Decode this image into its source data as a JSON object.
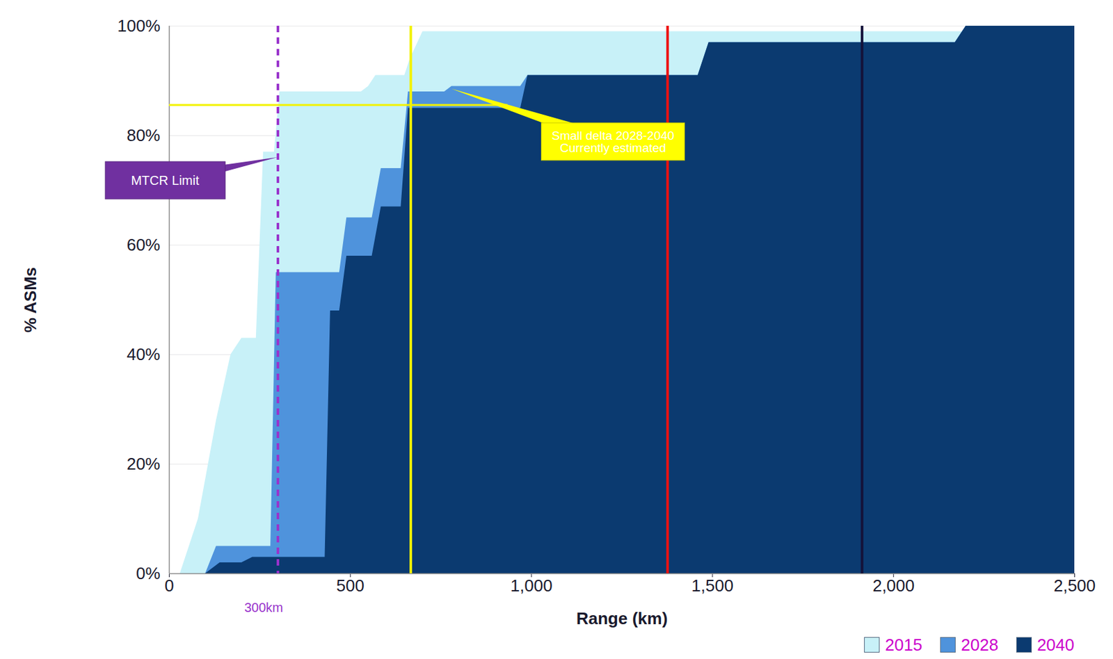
{
  "chart_data": {
    "type": "area",
    "x_label": "Range (km)",
    "y_label": "% ASMs",
    "xlim": [
      0,
      2500
    ],
    "xticks": [
      0,
      500,
      {
        "value": 1000,
        "label": "1,000"
      },
      {
        "value": 1500,
        "label": "1,500"
      },
      {
        "value": 2000,
        "label": "2,000"
      },
      {
        "value": 2500,
        "label": "2,500"
      }
    ],
    "ylim": [
      0,
      100
    ],
    "yticks": [
      {
        "value": 0,
        "label": "0%"
      },
      {
        "value": 20,
        "label": "20%"
      },
      {
        "value": 40,
        "label": "40%"
      },
      {
        "value": 60,
        "label": "60%"
      },
      {
        "value": 80,
        "label": "80%"
      },
      {
        "value": 100,
        "label": "100%"
      }
    ],
    "grid": true,
    "legend": "bottom",
    "series": [
      {
        "name": "2015",
        "color": "#c8f1f8",
        "x": [
          30,
          80,
          130,
          170,
          200,
          240,
          260,
          290,
          305,
          530,
          550,
          570,
          650,
          665,
          700,
          2200,
          2230,
          2500
        ],
        "values": [
          0,
          10,
          28,
          40,
          43,
          43,
          77,
          77,
          88,
          88,
          89,
          91,
          91,
          94,
          99,
          99,
          100,
          100
        ]
      },
      {
        "name": "2028",
        "color": "#4f93dc",
        "x": [
          100,
          130,
          280,
          295,
          470,
          490,
          560,
          585,
          640,
          660,
          760,
          780,
          970,
          990,
          1460,
          1490,
          2170,
          2200,
          2500
        ],
        "values": [
          0,
          5,
          5,
          55,
          55,
          65,
          65,
          74,
          74,
          88,
          88,
          89,
          89,
          91,
          91,
          97,
          97,
          100,
          100
        ]
      },
      {
        "name": "2040",
        "color": "#0b3a70",
        "x": [
          100,
          140,
          200,
          230,
          430,
          445,
          470,
          490,
          560,
          585,
          640,
          660,
          970,
          990,
          1460,
          1490,
          2170,
          2200,
          2500
        ],
        "values": [
          0,
          2,
          2,
          3,
          3,
          48,
          48,
          58,
          58,
          67,
          67,
          85,
          85,
          91,
          91,
          97,
          97,
          100,
          100
        ]
      }
    ],
    "vlines": [
      {
        "x": 300,
        "color": "#9933cc",
        "line_style": "dashed",
        "label": "300km"
      },
      {
        "x": 667,
        "color": "#f2f200",
        "line_style": "solid"
      },
      {
        "x": 1376,
        "color": "#ee1111",
        "line_style": "solid"
      },
      {
        "x": 1913,
        "color": "#14123a",
        "line_style": "solid"
      }
    ],
    "hlines": [
      {
        "y": 85.6,
        "x": [
          0,
          935
        ],
        "color": "#f2f200",
        "line_style": "solid"
      }
    ],
    "annotations": [
      {
        "text": "MTCR Limit",
        "x": 300,
        "y": 76,
        "color": "#7030a0"
      },
      {
        "text": "Small delta 2028-2040\nCurrently estimated",
        "x": 780,
        "y": 88.5,
        "color": "#ffff00"
      }
    ]
  }
}
